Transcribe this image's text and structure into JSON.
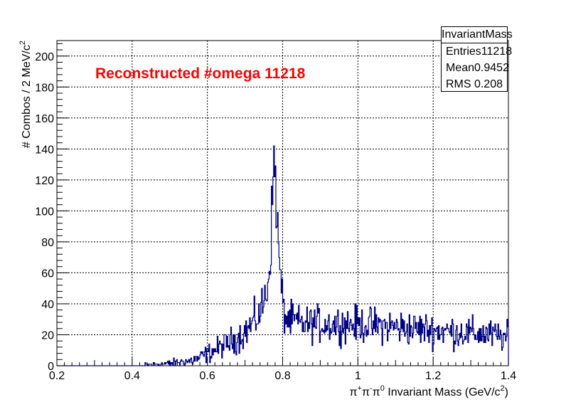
{
  "chart_data": {
    "type": "histogram",
    "title": "",
    "annotation": {
      "text": "Reconstructed #omega 11218",
      "color": "#ff0000"
    },
    "xlabel_parts": {
      "pre": "π",
      "s1": "+",
      "mid1": "π",
      "s2": "-",
      "mid2": "π",
      "s3": "0",
      "post": " Invariant Mass (GeV/c",
      "s4": "2",
      "end": ")"
    },
    "ylabel_parts": {
      "main": "# Combos / 2 MeV/c",
      "sup": "2"
    },
    "xlim": [
      0.2,
      1.4
    ],
    "ylim": [
      0,
      210
    ],
    "xticks": [
      0.2,
      0.4,
      0.6,
      0.8,
      1,
      1.2,
      1.4
    ],
    "xtick_labels": [
      "0.2",
      "0.4",
      "0.6",
      "0.8",
      "1",
      "1.2",
      "1.4"
    ],
    "yticks": [
      0,
      20,
      40,
      60,
      80,
      100,
      120,
      140,
      160,
      180,
      200
    ],
    "ytick_labels": [
      "0",
      "20",
      "40",
      "60",
      "80",
      "100",
      "120",
      "140",
      "160",
      "180",
      "200"
    ],
    "grid": true,
    "bin_width": 0.002,
    "line_color": "#000080",
    "stats": {
      "title": "InvariantMass",
      "rows": [
        {
          "label": "Entries",
          "value": "11218"
        },
        {
          "label": "Mean",
          "value": "0.9452"
        },
        {
          "label": "RMS",
          "value": "0.208"
        }
      ]
    },
    "profile": {
      "description": "bin contents sampled from approximate shape points",
      "points": [
        [
          0.2,
          0
        ],
        [
          0.42,
          0
        ],
        [
          0.44,
          0.5
        ],
        [
          0.48,
          1
        ],
        [
          0.52,
          2
        ],
        [
          0.55,
          3
        ],
        [
          0.58,
          5
        ],
        [
          0.6,
          8
        ],
        [
          0.62,
          10
        ],
        [
          0.65,
          14
        ],
        [
          0.68,
          18
        ],
        [
          0.7,
          22
        ],
        [
          0.72,
          27
        ],
        [
          0.74,
          34
        ],
        [
          0.755,
          45
        ],
        [
          0.765,
          62
        ],
        [
          0.77,
          90
        ],
        [
          0.774,
          112
        ],
        [
          0.778,
          135
        ],
        [
          0.781,
          125
        ],
        [
          0.784,
          100
        ],
        [
          0.788,
          80
        ],
        [
          0.792,
          65
        ],
        [
          0.796,
          52
        ],
        [
          0.8,
          40
        ],
        [
          0.805,
          33
        ],
        [
          0.81,
          30
        ],
        [
          0.85,
          27
        ],
        [
          0.95,
          27
        ],
        [
          1.05,
          26
        ],
        [
          1.15,
          24
        ],
        [
          1.25,
          22
        ],
        [
          1.35,
          20
        ],
        [
          1.4,
          18
        ]
      ]
    }
  }
}
